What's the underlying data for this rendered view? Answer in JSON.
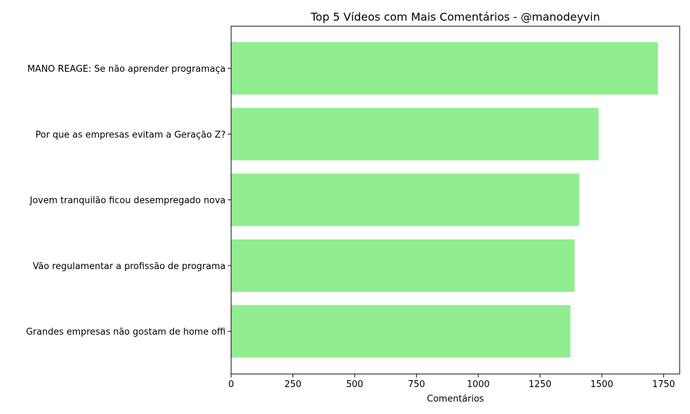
{
  "chart_data": {
    "type": "bar",
    "orientation": "horizontal",
    "title": "Top 5 Vídeos com Mais Comentários - @manodeyvin",
    "xlabel": "Comentários",
    "ylabel": "",
    "categories": [
      "MANO REAGE: Se não aprender programaça",
      "Por que as empresas evitam a Geração Z?",
      "Jovem tranquilão ficou desempregado nova",
      "Vão regulamentar a profissão de programa",
      "Grandes empresas não gostam de home offi"
    ],
    "values": [
      1727,
      1487,
      1409,
      1390,
      1373
    ],
    "xlim": [
      0,
      1815
    ],
    "xticks": [
      0,
      250,
      500,
      750,
      1000,
      1250,
      1500,
      1750
    ],
    "xtick_labels": [
      "0",
      "250",
      "500",
      "750",
      "1000",
      "1250",
      "1500",
      "1750"
    ],
    "bar_color": "#90ee90",
    "grid": false,
    "legend": "none"
  }
}
